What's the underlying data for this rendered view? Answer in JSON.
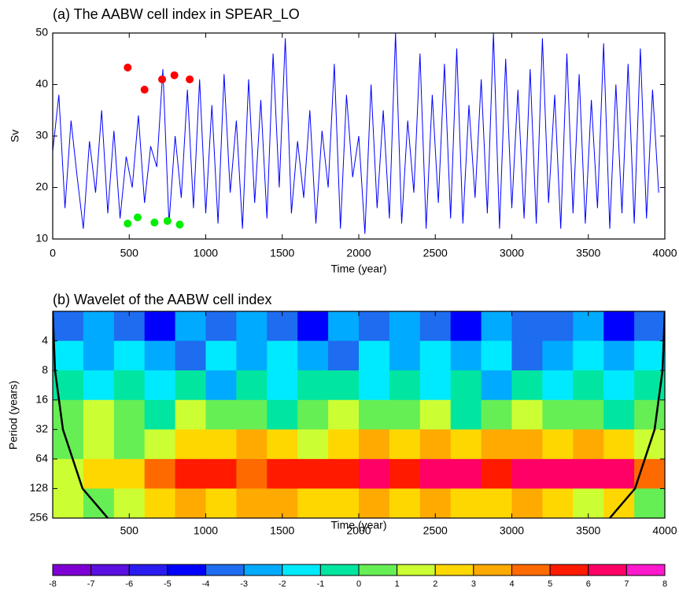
{
  "chart_data": [
    {
      "type": "line",
      "title": "(a) The AABW cell index in SPEAR_LO",
      "x_label": "Time (year)",
      "y_label": "Sv",
      "xlim": [
        0,
        4000
      ],
      "xticks": [
        0,
        500,
        1000,
        1500,
        2000,
        2500,
        3000,
        3500,
        4000
      ],
      "ylim": [
        10,
        50
      ],
      "yticks": [
        10,
        20,
        30,
        40,
        50
      ],
      "x": [
        0,
        40,
        80,
        120,
        160,
        200,
        240,
        280,
        320,
        360,
        400,
        440,
        480,
        520,
        560,
        600,
        640,
        680,
        720,
        760,
        800,
        840,
        880,
        920,
        960,
        1000,
        1040,
        1080,
        1120,
        1160,
        1200,
        1240,
        1280,
        1320,
        1360,
        1400,
        1440,
        1480,
        1520,
        1560,
        1600,
        1640,
        1680,
        1720,
        1760,
        1800,
        1840,
        1880,
        1920,
        1960,
        2000,
        2040,
        2080,
        2120,
        2160,
        2200,
        2240,
        2280,
        2320,
        2360,
        2400,
        2440,
        2480,
        2520,
        2560,
        2600,
        2640,
        2680,
        2720,
        2760,
        2800,
        2840,
        2880,
        2920,
        2960,
        3000,
        3040,
        3080,
        3120,
        3160,
        3200,
        3240,
        3280,
        3320,
        3360,
        3400,
        3440,
        3480,
        3520,
        3560,
        3600,
        3640,
        3680,
        3720,
        3760,
        3800,
        3840,
        3880,
        3920,
        3960
      ],
      "series": [
        {
          "color": "#0000ff",
          "values": [
            27,
            38,
            16,
            33,
            22,
            12,
            29,
            19,
            35,
            15,
            31,
            14,
            26,
            20,
            34,
            17,
            28,
            24,
            43,
            13,
            30,
            18,
            39,
            16,
            41,
            15,
            36,
            13,
            42,
            19,
            33,
            12,
            41,
            17,
            37,
            14,
            46,
            20,
            49,
            15,
            29,
            18,
            35,
            13,
            31,
            20,
            44,
            12,
            38,
            22,
            30,
            11,
            40,
            16,
            35,
            14,
            50,
            13,
            33,
            19,
            46,
            12,
            38,
            17,
            44,
            14,
            47,
            13,
            36,
            18,
            41,
            15,
            50,
            12,
            45,
            16,
            39,
            14,
            43,
            13,
            49,
            17,
            38,
            12,
            46,
            15,
            42,
            13,
            37,
            16,
            48,
            12,
            40,
            15,
            44,
            13,
            47,
            14,
            39,
            19
          ]
        }
      ],
      "maxima": {
        "color": "#ff0000",
        "x": [
          490,
          600,
          715,
          795,
          895
        ],
        "values": [
          43.3,
          39,
          41,
          41.8,
          41
        ]
      },
      "minima": {
        "color": "#00ee00",
        "x": [
          490,
          555,
          665,
          750,
          830
        ],
        "values": [
          13,
          14.2,
          13.2,
          13.5,
          12.8
        ]
      }
    },
    {
      "type": "heatmap",
      "title": "(b) Wavelet of the AABW cell index",
      "x_label": "Time (year)",
      "y_label": "Period (years)",
      "xlim": [
        0,
        4000
      ],
      "xticks": [
        500,
        1000,
        1500,
        2000,
        2500,
        3000,
        3500,
        4000
      ],
      "ylim": [
        2,
        256
      ],
      "yticks": [
        4,
        8,
        16,
        32,
        64,
        128,
        256
      ],
      "log_scale_y": true,
      "reverse_y": true,
      "time_edges": [
        0,
        200,
        400,
        600,
        800,
        1000,
        1200,
        1400,
        1600,
        1800,
        2000,
        2200,
        2400,
        2600,
        2800,
        3000,
        3200,
        3400,
        3600,
        3800,
        4000
      ],
      "period_edges": [
        2,
        4,
        8,
        16,
        32,
        64,
        128,
        256
      ],
      "values": [
        [
          -4,
          -3,
          -4,
          -5,
          -3,
          -4,
          -3,
          -4,
          -5,
          -3,
          -4,
          -3,
          -4,
          -5,
          -3,
          -4,
          -4,
          -3,
          -5,
          -4
        ],
        [
          -2,
          -3,
          -2,
          -3,
          -4,
          -2,
          -3,
          -2,
          -3,
          -4,
          -2,
          -3,
          -2,
          -3,
          -2,
          -4,
          -3,
          -2,
          -3,
          -2
        ],
        [
          -1,
          -2,
          -1,
          -2,
          -1,
          -3,
          -1,
          -2,
          -1,
          -1,
          -2,
          -1,
          -2,
          -1,
          -3,
          -1,
          -2,
          -1,
          -2,
          -1
        ],
        [
          0,
          1,
          0,
          -1,
          1,
          0,
          0,
          -1,
          0,
          1,
          0,
          0,
          1,
          -1,
          0,
          1,
          0,
          0,
          -1,
          0
        ],
        [
          0,
          1,
          0,
          1,
          2,
          2,
          3,
          2,
          1,
          2,
          3,
          2,
          3,
          2,
          3,
          3,
          2,
          3,
          2,
          1
        ],
        [
          1,
          2,
          2,
          4,
          5,
          5,
          4,
          5,
          5,
          5,
          6,
          5,
          6,
          6,
          5,
          6,
          6,
          6,
          6,
          4
        ],
        [
          1,
          0,
          1,
          2,
          3,
          2,
          3,
          3,
          2,
          2,
          3,
          2,
          3,
          2,
          2,
          3,
          2,
          1,
          2,
          0
        ]
      ],
      "levels": [
        -8,
        -7,
        -6,
        -5,
        -4,
        -3,
        -2,
        -1,
        0,
        1,
        2,
        3,
        4,
        5,
        6,
        7,
        8
      ],
      "colors": [
        "#7f00d4",
        "#5a10e0",
        "#2a1cf0",
        "#0000ff",
        "#1e6cf0",
        "#00aaff",
        "#00eaff",
        "#00e6a0",
        "#66ee55",
        "#ccff33",
        "#ffd700",
        "#ffaa00",
        "#ff6a00",
        "#ff1a00",
        "#ff0066",
        "#ff19cc"
      ],
      "coi": [
        {
          "color": "#000000",
          "x": [
            0,
            15,
            67,
            195,
            360
          ],
          "period": [
            2,
            8,
            32,
            128,
            256
          ]
        },
        {
          "color": "#000000",
          "x": [
            4000,
            3985,
            3933,
            3805,
            3640
          ],
          "period": [
            2,
            8,
            32,
            128,
            256
          ]
        }
      ]
    }
  ]
}
